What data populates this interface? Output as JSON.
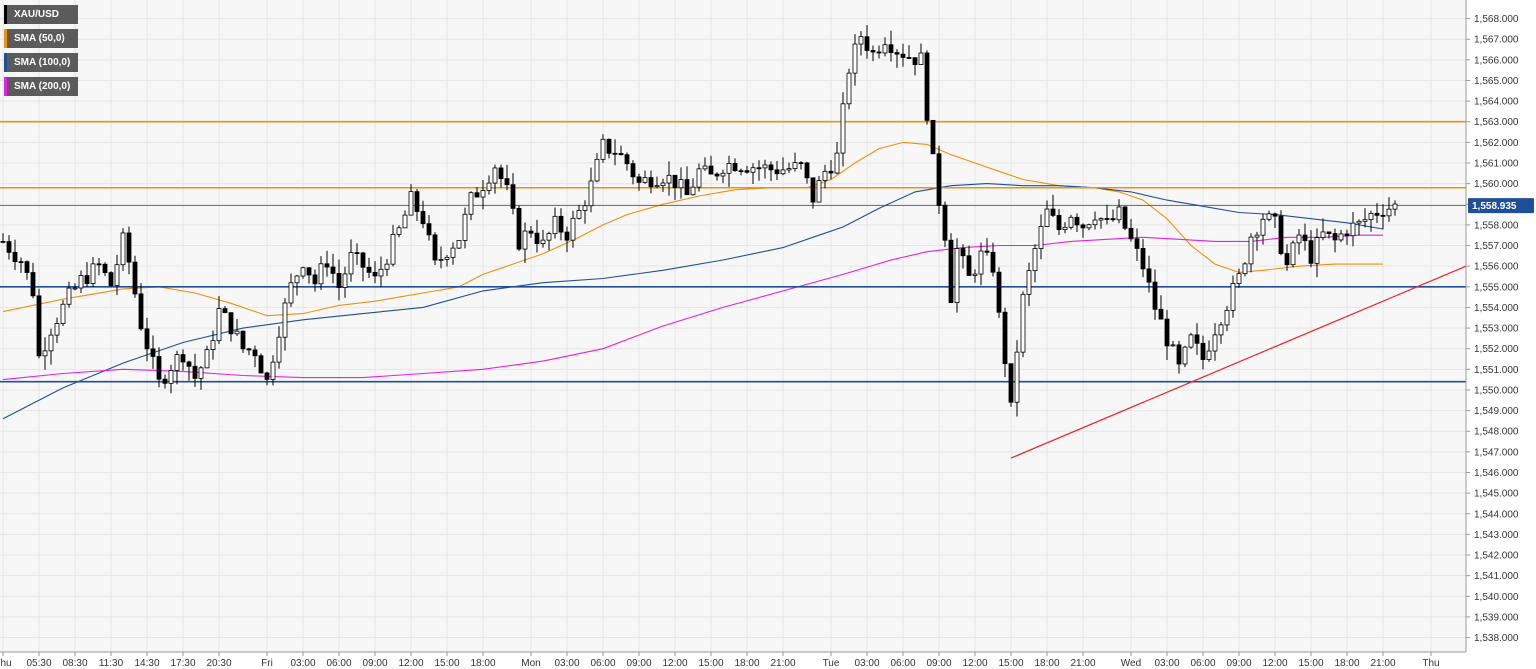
{
  "chart_data": {
    "type": "candlestick",
    "symbol": "XAU/USD",
    "ylim": [
      1537.3,
      1568.9
    ],
    "y_ticks": [
      "1,538.000",
      "1,539.000",
      "1,540.000",
      "1,541.000",
      "1,542.000",
      "1,543.000",
      "1,544.000",
      "1,545.000",
      "1,546.000",
      "1,547.000",
      "1,548.000",
      "1,549.000",
      "1,550.000",
      "1,551.000",
      "1,552.000",
      "1,553.000",
      "1,554.000",
      "1,555.000",
      "1,556.000",
      "1,557.000",
      "1,558.000",
      "1,559.000",
      "1,560.000",
      "1,561.000",
      "1,562.000",
      "1,563.000",
      "1,564.000",
      "1,565.000",
      "1,566.000",
      "1,567.000",
      "1,568.000"
    ],
    "x_ticks": [
      "Thu",
      "05:30",
      "08:30",
      "11:30",
      "14:30",
      "17:30",
      "20:30",
      "Fri",
      "03:00",
      "06:00",
      "09:00",
      "12:00",
      "15:00",
      "18:00",
      "Mon",
      "03:00",
      "06:00",
      "09:00",
      "12:00",
      "15:00",
      "18:00",
      "21:00",
      "Tue",
      "03:00",
      "06:00",
      "09:00",
      "12:00",
      "15:00",
      "18:00",
      "21:00",
      "Wed",
      "03:00",
      "06:00",
      "09:00",
      "12:00",
      "15:00",
      "18:00",
      "21:00",
      "Thu"
    ],
    "x_tick_index": [
      0,
      6,
      12,
      18,
      24,
      30,
      36,
      44,
      50,
      56,
      62,
      68,
      74,
      80,
      88,
      94,
      100,
      106,
      112,
      118,
      124,
      130,
      138,
      144,
      150,
      156,
      162,
      168,
      174,
      180,
      188,
      194,
      200,
      206,
      212,
      218,
      224,
      230,
      238
    ],
    "n_slots": 241,
    "last_price": "1,558.935",
    "last_price_value": 1558.935,
    "horizontal_levels": [
      {
        "value": 1563.0,
        "color": "#f0900e"
      },
      {
        "value": 1559.8,
        "color": "#f0900e"
      },
      {
        "value": 1555.0,
        "color": "#1f4e9a"
      },
      {
        "value": 1550.4,
        "color": "#1f4e9a"
      }
    ],
    "trendline": {
      "from": [
        168.5,
        1546.7
      ],
      "to": [
        245.0,
        1556.0
      ],
      "color": "#ef2323"
    },
    "candle_points": [
      [
        0,
        1557.2
      ],
      [
        3,
        1556.3
      ],
      [
        5,
        1554.8
      ],
      [
        6,
        1551.6
      ],
      [
        8,
        1553.0
      ],
      [
        11,
        1554.5
      ],
      [
        13,
        1555.3
      ],
      [
        16,
        1556.0
      ],
      [
        18,
        1555.1
      ],
      [
        20,
        1557.2
      ],
      [
        21,
        1556.2
      ],
      [
        23,
        1553.2
      ],
      [
        25,
        1551.2
      ],
      [
        26,
        1550.3
      ],
      [
        28,
        1551.2
      ],
      [
        30,
        1551.8
      ],
      [
        32,
        1550.6
      ],
      [
        34,
        1551.6
      ],
      [
        36,
        1553.8
      ],
      [
        38,
        1553.1
      ],
      [
        40,
        1552.0
      ],
      [
        42,
        1551.9
      ],
      [
        44,
        1550.4
      ],
      [
        46,
        1553.0
      ],
      [
        48,
        1555.0
      ],
      [
        50,
        1556.3
      ],
      [
        52,
        1555.2
      ],
      [
        54,
        1556.3
      ],
      [
        56,
        1555.0
      ],
      [
        58,
        1556.4
      ],
      [
        60,
        1556.0
      ],
      [
        62,
        1555.3
      ],
      [
        64,
        1556.5
      ],
      [
        66,
        1557.7
      ],
      [
        68,
        1559.2
      ],
      [
        70,
        1558.3
      ],
      [
        72,
        1556.0
      ],
      [
        74,
        1556.8
      ],
      [
        76,
        1557.4
      ],
      [
        78,
        1559.2
      ],
      [
        80,
        1560.0
      ],
      [
        82,
        1560.9
      ],
      [
        84,
        1559.6
      ],
      [
        86,
        1557.2
      ],
      [
        88,
        1557.8
      ],
      [
        90,
        1557.0
      ],
      [
        92,
        1558.0
      ],
      [
        94,
        1557.6
      ],
      [
        96,
        1558.6
      ],
      [
        98,
        1559.9
      ],
      [
        100,
        1561.8
      ],
      [
        102,
        1561.6
      ],
      [
        104,
        1561.0
      ],
      [
        106,
        1560.0
      ],
      [
        108,
        1560.3
      ],
      [
        110,
        1560.4
      ],
      [
        112,
        1560.1
      ],
      [
        114,
        1559.4
      ],
      [
        116,
        1560.6
      ],
      [
        118,
        1560.3
      ],
      [
        120,
        1560.9
      ],
      [
        122,
        1561.0
      ],
      [
        124,
        1560.9
      ],
      [
        126,
        1560.8
      ],
      [
        128,
        1560.7
      ],
      [
        130,
        1560.7
      ],
      [
        133,
        1560.8
      ],
      [
        135,
        1559.3
      ],
      [
        137,
        1560.6
      ],
      [
        139,
        1561.3
      ],
      [
        141,
        1565.6
      ],
      [
        143,
        1567.2
      ],
      [
        145,
        1566.3
      ],
      [
        147,
        1567.1
      ],
      [
        149,
        1566.5
      ],
      [
        151,
        1566.2
      ],
      [
        153,
        1566.0
      ],
      [
        154,
        1563.5
      ],
      [
        155,
        1561.0
      ],
      [
        156,
        1559.2
      ],
      [
        157,
        1557.6
      ],
      [
        158,
        1554.6
      ],
      [
        159,
        1556.8
      ],
      [
        161,
        1555.4
      ],
      [
        163,
        1556.5
      ],
      [
        165,
        1556.0
      ],
      [
        166,
        1553.5
      ],
      [
        167,
        1551.5
      ],
      [
        168,
        1549.0
      ],
      [
        169,
        1552.0
      ],
      [
        170,
        1554.4
      ],
      [
        172,
        1556.8
      ],
      [
        174,
        1558.6
      ],
      [
        176,
        1557.8
      ],
      [
        178,
        1558.6
      ],
      [
        180,
        1558.0
      ],
      [
        182,
        1558.6
      ],
      [
        184,
        1558.0
      ],
      [
        186,
        1558.5
      ],
      [
        188,
        1557.2
      ],
      [
        190,
        1556.0
      ],
      [
        192,
        1554.0
      ],
      [
        194,
        1552.5
      ],
      [
        196,
        1551.0
      ],
      [
        198,
        1552.4
      ],
      [
        200,
        1551.5
      ],
      [
        202,
        1553.0
      ],
      [
        204,
        1554.2
      ],
      [
        206,
        1555.4
      ],
      [
        208,
        1557.5
      ],
      [
        210,
        1558.4
      ],
      [
        212,
        1558.0
      ],
      [
        214,
        1556.0
      ],
      [
        216,
        1557.5
      ],
      [
        218,
        1556.5
      ],
      [
        220,
        1557.5
      ],
      [
        222,
        1557.2
      ],
      [
        224,
        1557.8
      ],
      [
        226,
        1558.0
      ],
      [
        228,
        1558.5
      ],
      [
        230,
        1558.8
      ],
      [
        232,
        1558.9
      ]
    ],
    "series": [
      {
        "name": "SMA (50,0)",
        "color": "#f0900e",
        "points": [
          [
            0,
            1553.8
          ],
          [
            10,
            1554.4
          ],
          [
            20,
            1554.9
          ],
          [
            26,
            1555.0
          ],
          [
            32,
            1554.7
          ],
          [
            38,
            1554.2
          ],
          [
            44,
            1553.6
          ],
          [
            50,
            1553.7
          ],
          [
            56,
            1554.1
          ],
          [
            62,
            1554.3
          ],
          [
            66,
            1554.5
          ],
          [
            70,
            1554.7
          ],
          [
            76,
            1555.0
          ],
          [
            80,
            1555.6
          ],
          [
            84,
            1556.0
          ],
          [
            90,
            1556.6
          ],
          [
            96,
            1557.4
          ],
          [
            100,
            1558.0
          ],
          [
            104,
            1558.5
          ],
          [
            110,
            1559.0
          ],
          [
            116,
            1559.4
          ],
          [
            122,
            1559.7
          ],
          [
            128,
            1559.8
          ],
          [
            134,
            1559.8
          ],
          [
            138,
            1560.2
          ],
          [
            142,
            1561.0
          ],
          [
            146,
            1561.7
          ],
          [
            150,
            1562.0
          ],
          [
            154,
            1561.9
          ],
          [
            158,
            1561.4
          ],
          [
            162,
            1561.0
          ],
          [
            166,
            1560.6
          ],
          [
            170,
            1560.2
          ],
          [
            176,
            1559.9
          ],
          [
            182,
            1559.8
          ],
          [
            186,
            1559.6
          ],
          [
            190,
            1559.2
          ],
          [
            194,
            1558.3
          ],
          [
            198,
            1557.0
          ],
          [
            202,
            1556.1
          ],
          [
            206,
            1555.7
          ],
          [
            210,
            1555.8
          ],
          [
            216,
            1556.0
          ],
          [
            222,
            1556.1
          ],
          [
            226,
            1556.1
          ],
          [
            230,
            1556.1
          ]
        ]
      },
      {
        "name": "SMA (100,0)",
        "color": "#1f4e9a",
        "points": [
          [
            0,
            1548.6
          ],
          [
            10,
            1550.1
          ],
          [
            20,
            1551.3
          ],
          [
            30,
            1552.3
          ],
          [
            40,
            1553.0
          ],
          [
            50,
            1553.4
          ],
          [
            60,
            1553.7
          ],
          [
            70,
            1554.0
          ],
          [
            80,
            1554.8
          ],
          [
            90,
            1555.2
          ],
          [
            100,
            1555.4
          ],
          [
            110,
            1555.8
          ],
          [
            120,
            1556.3
          ],
          [
            130,
            1556.9
          ],
          [
            136,
            1557.5
          ],
          [
            140,
            1557.9
          ],
          [
            146,
            1558.8
          ],
          [
            152,
            1559.6
          ],
          [
            158,
            1559.9
          ],
          [
            164,
            1560.0
          ],
          [
            170,
            1559.9
          ],
          [
            176,
            1559.9
          ],
          [
            182,
            1559.8
          ],
          [
            188,
            1559.6
          ],
          [
            194,
            1559.2
          ],
          [
            200,
            1558.9
          ],
          [
            206,
            1558.6
          ],
          [
            212,
            1558.5
          ],
          [
            218,
            1558.3
          ],
          [
            224,
            1558.1
          ],
          [
            230,
            1557.8
          ]
        ]
      },
      {
        "name": "SMA (200,0)",
        "color": "#e81ee8",
        "points": [
          [
            0,
            1550.5
          ],
          [
            10,
            1550.8
          ],
          [
            20,
            1551.0
          ],
          [
            30,
            1550.9
          ],
          [
            40,
            1550.7
          ],
          [
            50,
            1550.6
          ],
          [
            60,
            1550.6
          ],
          [
            70,
            1550.8
          ],
          [
            80,
            1551.0
          ],
          [
            90,
            1551.4
          ],
          [
            100,
            1552.0
          ],
          [
            110,
            1553.1
          ],
          [
            120,
            1554.0
          ],
          [
            130,
            1554.8
          ],
          [
            140,
            1555.6
          ],
          [
            148,
            1556.3
          ],
          [
            154,
            1556.7
          ],
          [
            160,
            1556.9
          ],
          [
            166,
            1557.0
          ],
          [
            172,
            1557.0
          ],
          [
            178,
            1557.2
          ],
          [
            184,
            1557.3
          ],
          [
            190,
            1557.4
          ],
          [
            196,
            1557.3
          ],
          [
            202,
            1557.2
          ],
          [
            208,
            1557.2
          ],
          [
            214,
            1557.4
          ],
          [
            220,
            1557.4
          ],
          [
            226,
            1557.5
          ],
          [
            230,
            1557.5
          ]
        ]
      }
    ],
    "grid": true
  },
  "legend": [
    {
      "label": "XAU/USD",
      "color": "#000000"
    },
    {
      "label": "SMA (50,0)",
      "color": "#f0900e"
    },
    {
      "label": "SMA (100,0)",
      "color": "#1f4e9a"
    },
    {
      "label": "SMA (200,0)",
      "color": "#e81ee8"
    }
  ]
}
